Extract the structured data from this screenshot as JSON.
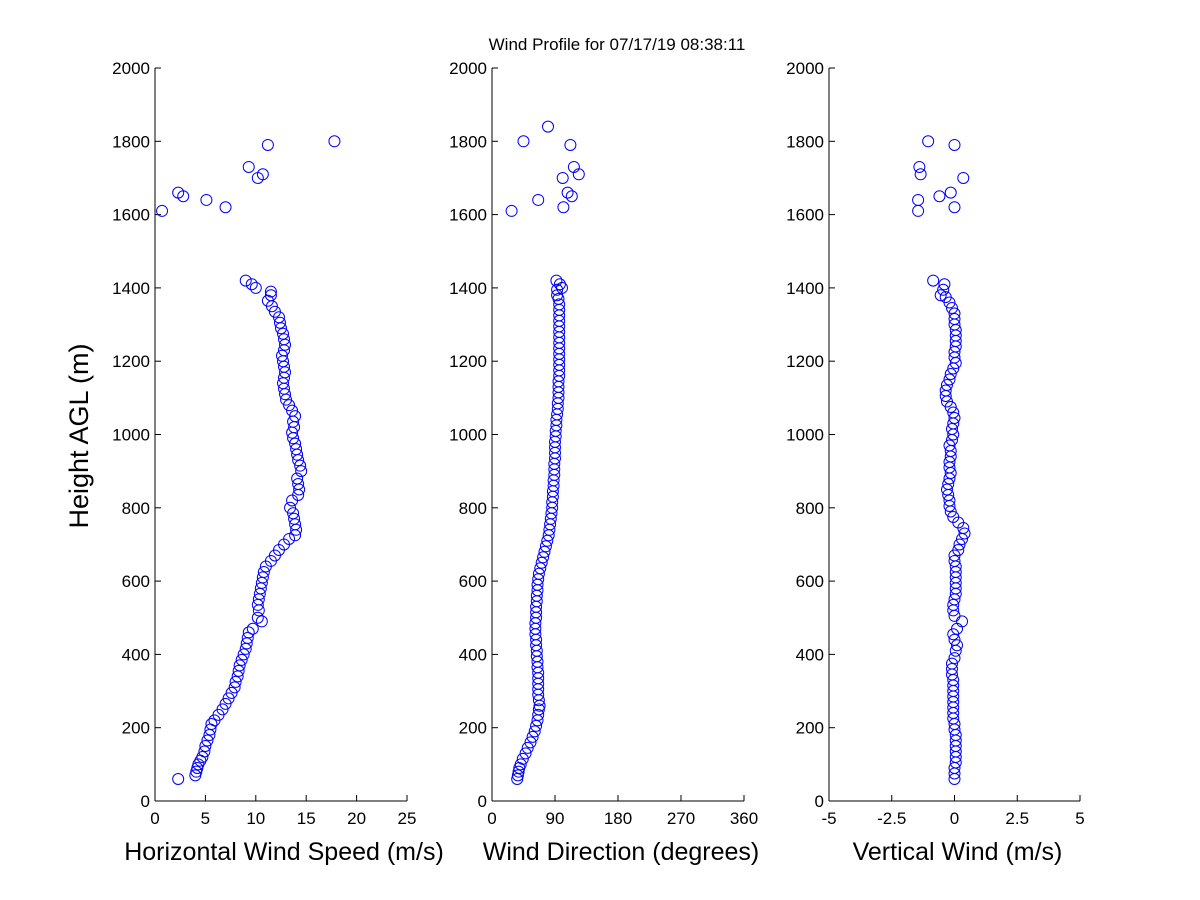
{
  "title": "Wind Profile for  07/17/19 08:38:11",
  "ylabel": "Height AGL (m)",
  "marker_color": "#0000ff",
  "chart_data": [
    {
      "type": "scatter",
      "marker": "circle-open",
      "xlabel": "Horizontal Wind Speed (m/s)",
      "ylabel": "Height AGL (m)",
      "xlim": [
        0,
        25
      ],
      "ylim": [
        0,
        2000
      ],
      "xticks": [
        0,
        5,
        10,
        15,
        20,
        25
      ],
      "xtick_labels": [
        "0",
        "5",
        "10",
        "15",
        "20",
        "25"
      ],
      "yticks": [
        0,
        200,
        400,
        600,
        800,
        1000,
        1200,
        1400,
        1600,
        1800,
        2000
      ],
      "ytick_labels": [
        "0",
        "200",
        "400",
        "600",
        "800",
        "1000",
        "1200",
        "1400",
        "1600",
        "1800",
        "2000"
      ],
      "points": [
        [
          2.3,
          60
        ],
        [
          4.0,
          70
        ],
        [
          4.1,
          80
        ],
        [
          4.2,
          90
        ],
        [
          4.3,
          100
        ],
        [
          4.5,
          110
        ],
        [
          4.7,
          120
        ],
        [
          4.9,
          135
        ],
        [
          5.0,
          150
        ],
        [
          5.2,
          165
        ],
        [
          5.4,
          180
        ],
        [
          5.5,
          195
        ],
        [
          5.6,
          210
        ],
        [
          5.9,
          220
        ],
        [
          6.3,
          235
        ],
        [
          6.7,
          250
        ],
        [
          7.0,
          265
        ],
        [
          7.3,
          280
        ],
        [
          7.6,
          295
        ],
        [
          7.9,
          310
        ],
        [
          8.0,
          325
        ],
        [
          8.2,
          340
        ],
        [
          8.3,
          355
        ],
        [
          8.4,
          370
        ],
        [
          8.6,
          385
        ],
        [
          8.8,
          400
        ],
        [
          9.0,
          415
        ],
        [
          9.1,
          430
        ],
        [
          9.2,
          445
        ],
        [
          9.3,
          460
        ],
        [
          9.7,
          470
        ],
        [
          10.6,
          490
        ],
        [
          10.2,
          500
        ],
        [
          10.3,
          520
        ],
        [
          10.2,
          535
        ],
        [
          10.3,
          550
        ],
        [
          10.4,
          565
        ],
        [
          10.5,
          580
        ],
        [
          10.6,
          595
        ],
        [
          10.7,
          610
        ],
        [
          10.8,
          625
        ],
        [
          11.0,
          640
        ],
        [
          11.5,
          655
        ],
        [
          11.9,
          670
        ],
        [
          12.3,
          685
        ],
        [
          12.8,
          700
        ],
        [
          13.3,
          715
        ],
        [
          13.9,
          725
        ],
        [
          14.0,
          740
        ],
        [
          13.9,
          755
        ],
        [
          13.8,
          770
        ],
        [
          13.7,
          785
        ],
        [
          13.4,
          800
        ],
        [
          13.6,
          820
        ],
        [
          14.2,
          835
        ],
        [
          14.3,
          850
        ],
        [
          14.2,
          865
        ],
        [
          14.1,
          880
        ],
        [
          14.5,
          900
        ],
        [
          14.4,
          915
        ],
        [
          14.2,
          930
        ],
        [
          14.1,
          945
        ],
        [
          14.0,
          960
        ],
        [
          13.9,
          975
        ],
        [
          13.7,
          990
        ],
        [
          13.6,
          1005
        ],
        [
          13.8,
          1020
        ],
        [
          13.7,
          1035
        ],
        [
          13.9,
          1050
        ],
        [
          13.6,
          1065
        ],
        [
          13.3,
          1080
        ],
        [
          13.0,
          1095
        ],
        [
          12.9,
          1110
        ],
        [
          12.8,
          1125
        ],
        [
          12.7,
          1140
        ],
        [
          12.8,
          1155
        ],
        [
          12.9,
          1170
        ],
        [
          12.8,
          1185
        ],
        [
          12.7,
          1200
        ],
        [
          12.6,
          1215
        ],
        [
          12.8,
          1230
        ],
        [
          12.9,
          1245
        ],
        [
          12.8,
          1260
        ],
        [
          12.7,
          1275
        ],
        [
          12.5,
          1290
        ],
        [
          12.4,
          1305
        ],
        [
          12.3,
          1320
        ],
        [
          11.9,
          1335
        ],
        [
          11.6,
          1350
        ],
        [
          11.2,
          1365
        ],
        [
          11.5,
          1380
        ],
        [
          11.5,
          1390
        ],
        [
          10.0,
          1400
        ],
        [
          9.6,
          1410
        ],
        [
          9.0,
          1420
        ],
        [
          0.7,
          1610
        ],
        [
          7.0,
          1620
        ],
        [
          5.1,
          1640
        ],
        [
          2.8,
          1650
        ],
        [
          2.3,
          1660
        ],
        [
          10.2,
          1700
        ],
        [
          10.7,
          1710
        ],
        [
          9.3,
          1730
        ],
        [
          11.2,
          1790
        ],
        [
          17.8,
          1800
        ]
      ]
    },
    {
      "type": "scatter",
      "marker": "circle-open",
      "xlabel": "Wind Direction (degrees)",
      "ylabel": "",
      "xlim": [
        0,
        360
      ],
      "ylim": [
        0,
        2000
      ],
      "xticks": [
        0,
        90,
        180,
        270,
        360
      ],
      "xtick_labels": [
        "0",
        "90",
        "180",
        "270",
        "360"
      ],
      "yticks": [
        0,
        200,
        400,
        600,
        800,
        1000,
        1200,
        1400,
        1600,
        1800,
        2000
      ],
      "ytick_labels": [
        "0",
        "200",
        "400",
        "600",
        "800",
        "1000",
        "1200",
        "1400",
        "1600",
        "1800",
        "2000"
      ],
      "points": [
        [
          36,
          60
        ],
        [
          37,
          70
        ],
        [
          38,
          80
        ],
        [
          39,
          90
        ],
        [
          41,
          100
        ],
        [
          44,
          115
        ],
        [
          48,
          130
        ],
        [
          51,
          145
        ],
        [
          55,
          160
        ],
        [
          58,
          175
        ],
        [
          61,
          190
        ],
        [
          63,
          205
        ],
        [
          65,
          220
        ],
        [
          66,
          235
        ],
        [
          67,
          250
        ],
        [
          68,
          260
        ],
        [
          67,
          275
        ],
        [
          66,
          290
        ],
        [
          66,
          305
        ],
        [
          66,
          320
        ],
        [
          66,
          335
        ],
        [
          66,
          350
        ],
        [
          65,
          365
        ],
        [
          65,
          380
        ],
        [
          64,
          395
        ],
        [
          64,
          410
        ],
        [
          63,
          425
        ],
        [
          63,
          440
        ],
        [
          62,
          455
        ],
        [
          62,
          470
        ],
        [
          62,
          485
        ],
        [
          63,
          500
        ],
        [
          63,
          515
        ],
        [
          63,
          530
        ],
        [
          64,
          545
        ],
        [
          64,
          560
        ],
        [
          65,
          575
        ],
        [
          65,
          590
        ],
        [
          66,
          605
        ],
        [
          67,
          620
        ],
        [
          69,
          635
        ],
        [
          71,
          650
        ],
        [
          73,
          665
        ],
        [
          75,
          680
        ],
        [
          77,
          695
        ],
        [
          79,
          710
        ],
        [
          81,
          725
        ],
        [
          82,
          740
        ],
        [
          83,
          755
        ],
        [
          84,
          770
        ],
        [
          85,
          785
        ],
        [
          86,
          800
        ],
        [
          86,
          815
        ],
        [
          87,
          830
        ],
        [
          87,
          845
        ],
        [
          88,
          860
        ],
        [
          88,
          875
        ],
        [
          89,
          890
        ],
        [
          89,
          905
        ],
        [
          89,
          920
        ],
        [
          90,
          935
        ],
        [
          90,
          950
        ],
        [
          90,
          965
        ],
        [
          90,
          980
        ],
        [
          91,
          995
        ],
        [
          91,
          1010
        ],
        [
          92,
          1025
        ],
        [
          92,
          1040
        ],
        [
          93,
          1055
        ],
        [
          94,
          1070
        ],
        [
          94,
          1085
        ],
        [
          95,
          1100
        ],
        [
          95,
          1115
        ],
        [
          95,
          1130
        ],
        [
          95,
          1145
        ],
        [
          96,
          1160
        ],
        [
          96,
          1175
        ],
        [
          96,
          1190
        ],
        [
          96,
          1205
        ],
        [
          96,
          1220
        ],
        [
          96,
          1235
        ],
        [
          96,
          1250
        ],
        [
          96,
          1265
        ],
        [
          96,
          1280
        ],
        [
          96,
          1295
        ],
        [
          96,
          1310
        ],
        [
          96,
          1325
        ],
        [
          96,
          1340
        ],
        [
          96,
          1355
        ],
        [
          95,
          1370
        ],
        [
          93,
          1380
        ],
        [
          93,
          1395
        ],
        [
          100,
          1400
        ],
        [
          97,
          1410
        ],
        [
          92,
          1420
        ],
        [
          28,
          1610
        ],
        [
          102,
          1620
        ],
        [
          66,
          1640
        ],
        [
          114,
          1650
        ],
        [
          108,
          1660
        ],
        [
          101,
          1700
        ],
        [
          124,
          1710
        ],
        [
          117,
          1730
        ],
        [
          112,
          1790
        ],
        [
          45,
          1800
        ],
        [
          80,
          1840
        ]
      ]
    },
    {
      "type": "scatter",
      "marker": "circle-open",
      "xlabel": "Vertical Wind (m/s)",
      "ylabel": "",
      "xlim": [
        -5,
        5
      ],
      "ylim": [
        0,
        2000
      ],
      "xticks": [
        -5,
        -2.5,
        0,
        2.5,
        5
      ],
      "xtick_labels": [
        "-5",
        "-2.5",
        "0",
        "2.5",
        "5"
      ],
      "yticks": [
        0,
        200,
        400,
        600,
        800,
        1000,
        1200,
        1400,
        1600,
        1800,
        2000
      ],
      "ytick_labels": [
        "0",
        "200",
        "400",
        "600",
        "800",
        "1000",
        "1200",
        "1400",
        "1600",
        "1800",
        "2000"
      ],
      "points": [
        [
          0.0,
          60
        ],
        [
          0.0,
          75
        ],
        [
          0.0,
          90
        ],
        [
          0.05,
          105
        ],
        [
          0.05,
          120
        ],
        [
          0.05,
          135
        ],
        [
          0.05,
          150
        ],
        [
          0.05,
          165
        ],
        [
          0.05,
          180
        ],
        [
          0.0,
          195
        ],
        [
          0.0,
          210
        ],
        [
          -0.05,
          225
        ],
        [
          -0.05,
          240
        ],
        [
          -0.05,
          255
        ],
        [
          -0.05,
          270
        ],
        [
          -0.05,
          285
        ],
        [
          -0.05,
          300
        ],
        [
          -0.05,
          315
        ],
        [
          -0.05,
          330
        ],
        [
          -0.1,
          345
        ],
        [
          -0.1,
          360
        ],
        [
          -0.1,
          375
        ],
        [
          0.0,
          390
        ],
        [
          0.05,
          410
        ],
        [
          0.1,
          425
        ],
        [
          0.0,
          440
        ],
        [
          -0.05,
          455
        ],
        [
          0.1,
          470
        ],
        [
          0.3,
          490
        ],
        [
          0.0,
          505
        ],
        [
          -0.05,
          520
        ],
        [
          -0.05,
          535
        ],
        [
          0.0,
          550
        ],
        [
          0.05,
          565
        ],
        [
          0.05,
          580
        ],
        [
          0.05,
          595
        ],
        [
          0.05,
          610
        ],
        [
          0.05,
          625
        ],
        [
          0.05,
          640
        ],
        [
          0.0,
          655
        ],
        [
          0.0,
          670
        ],
        [
          0.15,
          685
        ],
        [
          0.2,
          700
        ],
        [
          0.3,
          715
        ],
        [
          0.4,
          730
        ],
        [
          0.35,
          745
        ],
        [
          0.15,
          760
        ],
        [
          -0.05,
          775
        ],
        [
          -0.15,
          790
        ],
        [
          -0.2,
          805
        ],
        [
          -0.2,
          820
        ],
        [
          -0.25,
          835
        ],
        [
          -0.3,
          850
        ],
        [
          -0.25,
          865
        ],
        [
          -0.2,
          880
        ],
        [
          -0.15,
          895
        ],
        [
          -0.2,
          910
        ],
        [
          -0.2,
          925
        ],
        [
          -0.15,
          940
        ],
        [
          -0.15,
          955
        ],
        [
          -0.2,
          970
        ],
        [
          -0.1,
          985
        ],
        [
          -0.05,
          1000
        ],
        [
          -0.1,
          1015
        ],
        [
          -0.05,
          1030
        ],
        [
          0.0,
          1045
        ],
        [
          -0.05,
          1060
        ],
        [
          -0.15,
          1075
        ],
        [
          -0.3,
          1090
        ],
        [
          -0.35,
          1105
        ],
        [
          -0.35,
          1120
        ],
        [
          -0.3,
          1135
        ],
        [
          -0.2,
          1150
        ],
        [
          -0.15,
          1165
        ],
        [
          -0.05,
          1180
        ],
        [
          0.05,
          1195
        ],
        [
          0.0,
          1210
        ],
        [
          0.0,
          1225
        ],
        [
          0.05,
          1240
        ],
        [
          0.05,
          1255
        ],
        [
          0.05,
          1270
        ],
        [
          0.05,
          1285
        ],
        [
          0.0,
          1300
        ],
        [
          0.0,
          1315
        ],
        [
          0.0,
          1330
        ],
        [
          -0.1,
          1345
        ],
        [
          -0.2,
          1360
        ],
        [
          -0.35,
          1375
        ],
        [
          -0.55,
          1380
        ],
        [
          -0.45,
          1395
        ],
        [
          -0.4,
          1410
        ],
        [
          -0.85,
          1420
        ],
        [
          -1.45,
          1610
        ],
        [
          0.0,
          1620
        ],
        [
          -1.45,
          1640
        ],
        [
          -0.6,
          1650
        ],
        [
          -0.15,
          1660
        ],
        [
          0.35,
          1700
        ],
        [
          -1.35,
          1710
        ],
        [
          -1.4,
          1730
        ],
        [
          0.0,
          1790
        ],
        [
          -1.05,
          1800
        ]
      ]
    }
  ]
}
